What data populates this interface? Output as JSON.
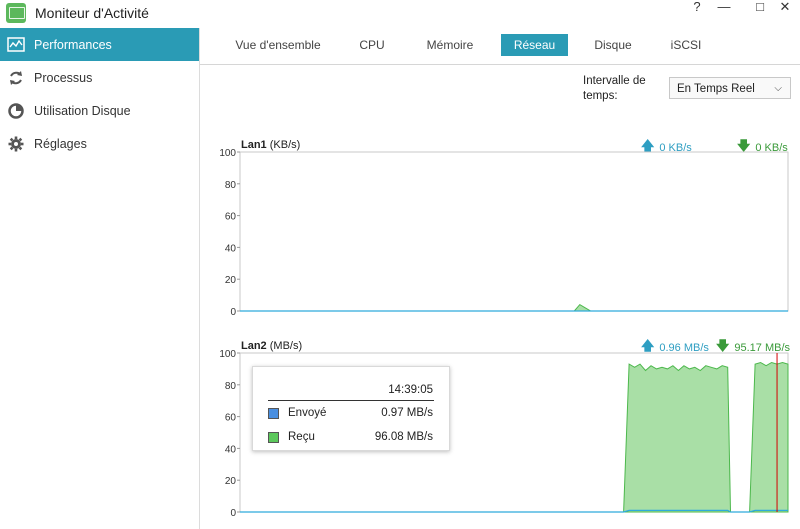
{
  "window": {
    "title": "Moniteur d'Activité",
    "help_glyph": "?",
    "minimize_glyph": "—",
    "maximize_glyph": "□",
    "close_glyph": "✕"
  },
  "sidebar": {
    "items": [
      {
        "label": "Performances",
        "icon": "chart-icon",
        "active": true
      },
      {
        "label": "Processus",
        "icon": "refresh-icon",
        "active": false
      },
      {
        "label": "Utilisation Disque",
        "icon": "disk-usage-icon",
        "active": false
      },
      {
        "label": "Réglages",
        "icon": "gear-icon",
        "active": false
      }
    ]
  },
  "tabs": [
    {
      "label": "Vue d'ensemble"
    },
    {
      "label": "CPU"
    },
    {
      "label": "Mémoire"
    },
    {
      "label": "Réseau",
      "active": true
    },
    {
      "label": "Disque"
    },
    {
      "label": "iSCSI"
    }
  ],
  "interval": {
    "label": "Intervalle de temps:",
    "selected": "En Temps Reel"
  },
  "colors": {
    "accent": "#2a9bb5",
    "sent": "#2eaadc",
    "received": "#4cb84c",
    "received_fill": "#a9dfa6",
    "cursor": "#d40000"
  },
  "lan1": {
    "name": "Lan1",
    "unit": "(KB/s)",
    "sent": "0 KB/s",
    "received": "0 KB/s"
  },
  "lan2": {
    "name": "Lan2",
    "unit": "(MB/s)",
    "sent": "0.96 MB/s",
    "received": "95.17 MB/s"
  },
  "tooltip": {
    "time": "14:39:05",
    "rows": [
      {
        "label": "Envoyé",
        "value": "0.97 MB/s"
      },
      {
        "label": "Reçu",
        "value": "96.08 MB/s"
      }
    ]
  },
  "chart_data": [
    {
      "type": "area",
      "title": "Lan1",
      "ylabel": "(KB/s)",
      "ylim": [
        0,
        100
      ],
      "yticks": [
        0,
        20,
        40,
        60,
        80,
        100
      ],
      "x": [
        0,
        55,
        61,
        62,
        63,
        64,
        100
      ],
      "series": [
        {
          "name": "received",
          "values": [
            0,
            0,
            0,
            4,
            2,
            0,
            0
          ]
        },
        {
          "name": "sent",
          "values": [
            0,
            0,
            0,
            0,
            0,
            0,
            0
          ]
        }
      ]
    },
    {
      "type": "area",
      "title": "Lan2",
      "ylabel": "(MB/s)",
      "ylim": [
        0,
        100
      ],
      "yticks": [
        0,
        20,
        40,
        60,
        80,
        100
      ],
      "x": [
        0,
        60,
        70,
        71,
        72,
        73,
        74,
        75,
        76,
        77,
        78,
        79,
        80,
        81,
        82,
        83,
        84,
        85,
        86,
        87,
        88,
        89,
        89.5,
        90,
        93,
        94,
        95,
        96,
        97,
        98,
        99,
        100
      ],
      "series": [
        {
          "name": "received",
          "values": [
            0,
            0,
            0,
            93,
            91,
            93,
            89,
            92,
            90,
            91,
            90,
            92,
            89,
            92,
            90,
            91,
            89,
            92,
            91,
            90,
            92,
            91,
            0,
            0,
            0,
            93,
            94,
            92,
            94,
            93,
            94,
            93
          ]
        },
        {
          "name": "sent",
          "values": [
            0,
            0,
            0,
            1,
            1,
            1,
            1,
            1,
            1,
            1,
            1,
            1,
            1,
            1,
            1,
            1,
            1,
            1,
            1,
            1,
            1,
            1,
            0,
            0,
            0,
            1,
            1,
            1,
            1,
            1,
            1,
            1
          ]
        }
      ],
      "cursor_x": 98
    }
  ]
}
